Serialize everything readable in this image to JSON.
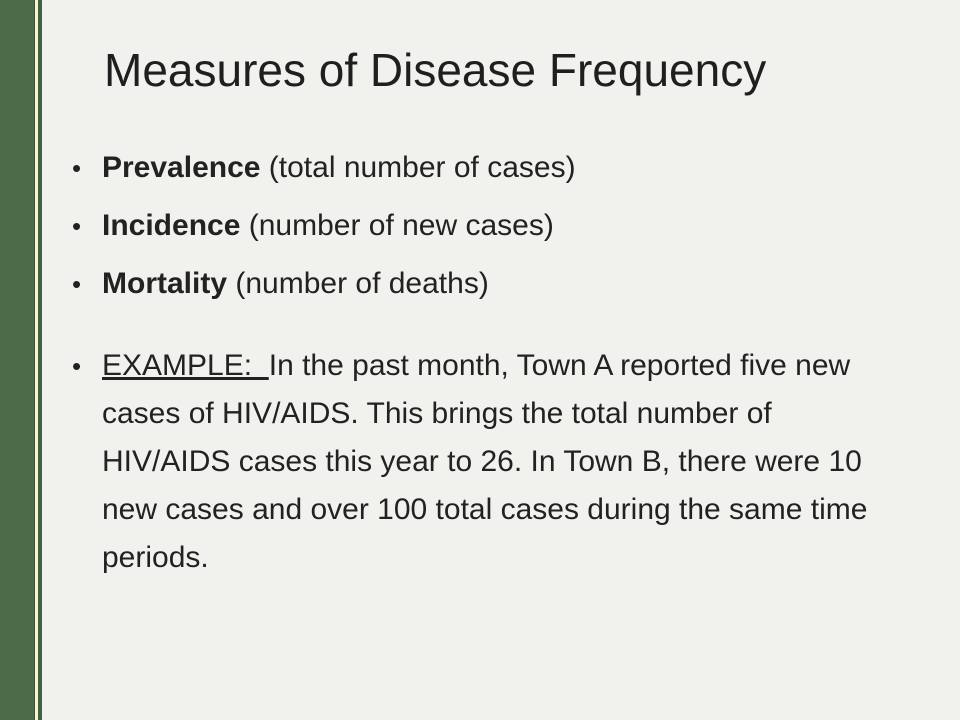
{
  "slide": {
    "title": "Measures of Disease Frequency",
    "bullet_symbol": "•",
    "bullets": [
      {
        "term": "Prevalence",
        "detail": " (total number of cases)"
      },
      {
        "term": "Incidence",
        "detail": " (number of new cases)"
      },
      {
        "term": "Mortality",
        "detail": " (number of deaths)"
      }
    ],
    "example": {
      "label": "EXAMPLE:  ",
      "text": "In the past month, Town A reported five new cases of HIV/AIDS.  This brings the total number of HIV/AIDS cases this year to 26.  In Town B, there were 10 new cases and over 100 total cases during the same time periods."
    }
  },
  "colors": {
    "background": "#f1f2ed",
    "accent_green": "#4c6b48",
    "accent_cream": "#f7f5d2",
    "text": "#222222"
  }
}
